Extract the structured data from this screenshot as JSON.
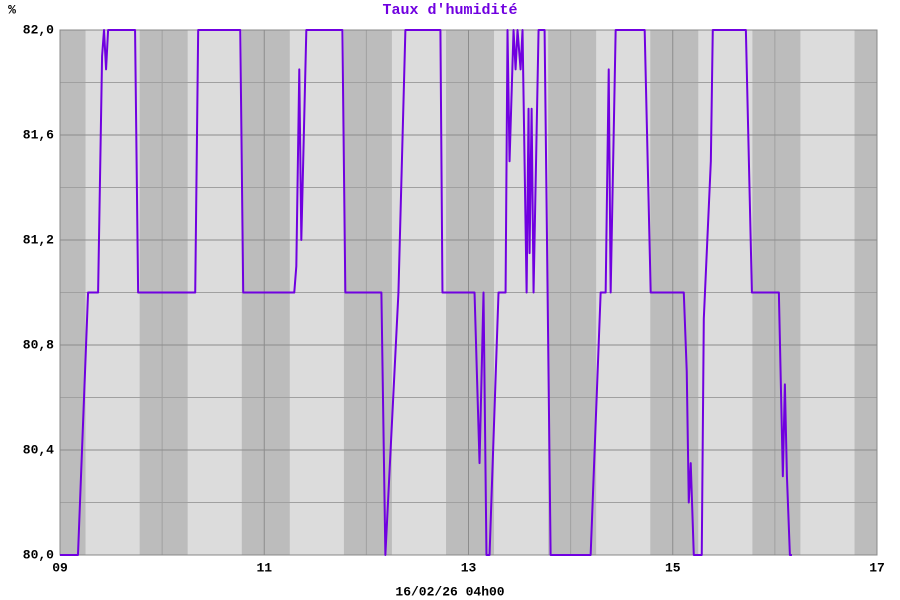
{
  "chart_data": {
    "type": "line",
    "title": "Taux d'humidité",
    "y_label": "%",
    "x_label": "16/02/26 04h00",
    "x": [
      9.0,
      9.176,
      9.275,
      9.373,
      9.412,
      9.431,
      9.451,
      9.471,
      9.735,
      9.765,
      10.324,
      10.353,
      10.765,
      10.794,
      11.294,
      11.314,
      11.343,
      11.363,
      11.412,
      11.765,
      11.794,
      12.147,
      12.186,
      12.314,
      12.382,
      12.725,
      12.745,
      13.059,
      13.108,
      13.147,
      13.176,
      13.206,
      13.294,
      13.363,
      13.382,
      13.402,
      13.441,
      13.461,
      13.48,
      13.51,
      13.529,
      13.569,
      13.588,
      13.598,
      13.618,
      13.637,
      13.686,
      13.745,
      13.804,
      14.196,
      14.294,
      14.343,
      14.373,
      14.392,
      14.441,
      14.725,
      14.784,
      15.108,
      15.137,
      15.157,
      15.176,
      15.206,
      15.284,
      15.304,
      15.373,
      15.392,
      15.716,
      15.775,
      16.039,
      16.078,
      16.098,
      16.118,
      16.147,
      16.167
    ],
    "series": [
      {
        "color": "#7000e0",
        "values": [
          80.0,
          80.0,
          81.0,
          81.0,
          81.9,
          82.0,
          81.85,
          82.0,
          82.0,
          81.0,
          81.0,
          82.0,
          82.0,
          81.0,
          81.0,
          81.1,
          81.85,
          81.2,
          82.0,
          82.0,
          81.0,
          81.0,
          80.0,
          81.0,
          82.0,
          82.0,
          81.0,
          81.0,
          80.35,
          81.0,
          80.0,
          80.0,
          81.0,
          81.0,
          82.0,
          81.5,
          82.0,
          81.85,
          82.0,
          81.85,
          82.0,
          81.0,
          81.7,
          81.15,
          81.7,
          81.0,
          82.0,
          82.0,
          80.0,
          80.0,
          81.0,
          81.0,
          81.85,
          81.0,
          82.0,
          82.0,
          81.0,
          81.0,
          80.7,
          80.2,
          80.35,
          80.0,
          80.0,
          80.9,
          81.5,
          82.0,
          82.0,
          81.0,
          81.0,
          80.3,
          80.65,
          80.3,
          80.0,
          80.0
        ]
      }
    ],
    "xlim": [
      9,
      17
    ],
    "xticks": [
      {
        "value": 9,
        "label": "09"
      },
      11,
      13,
      15,
      17
    ],
    "ylim": [
      80.0,
      82.0
    ],
    "yticks": [
      {
        "value": 80.0,
        "label": "80,0"
      },
      {
        "value": 80.4,
        "label": "80,4"
      },
      {
        "value": 80.8,
        "label": "80,8"
      },
      {
        "value": 81.2,
        "label": "81,2"
      },
      {
        "value": 81.6,
        "label": "81,6"
      },
      {
        "value": 82.0,
        "label": "82,0"
      }
    ],
    "grid": true
  }
}
